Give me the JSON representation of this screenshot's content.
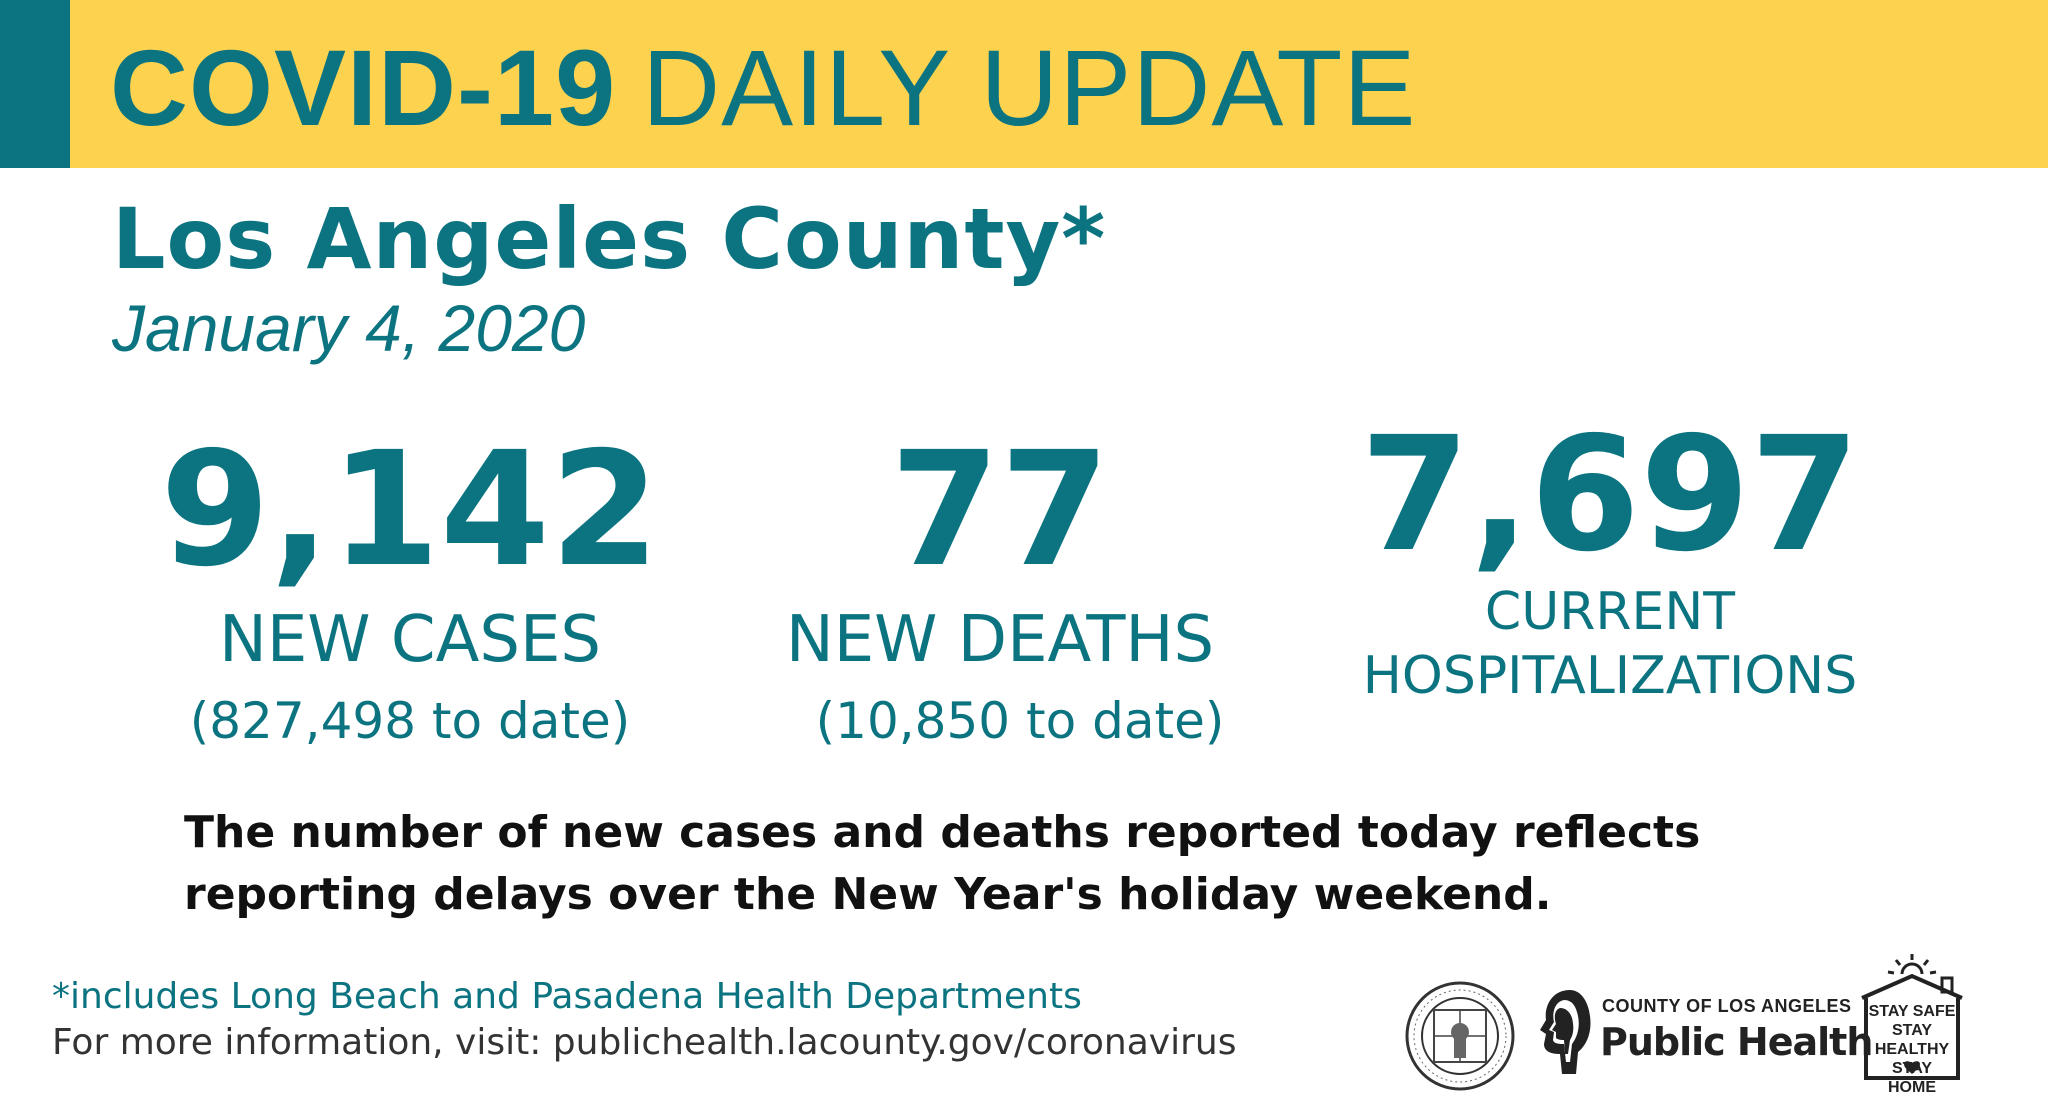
{
  "banner": {
    "title_bold": "COVID-19",
    "title_normal": "DAILY UPDATE",
    "colors": {
      "background": "#fdd24f",
      "accent": "#0b7480"
    }
  },
  "county": "Los Angeles County*",
  "date": "January 4, 2020",
  "stats": {
    "cases": {
      "value": "9,142",
      "label": "NEW CASES",
      "to_date": "(827,498 to date)"
    },
    "deaths": {
      "value": "77",
      "label": "NEW DEATHS",
      "to_date": "(10,850 to date)"
    },
    "hospitalizations": {
      "value": "7,697",
      "label_line1": "CURRENT",
      "label_line2": "HOSPITALIZATIONS"
    }
  },
  "note": "The number of new cases and deaths reported today reflects reporting delays over the New Year's holiday weekend.",
  "footnote": "*includes Long Beach and Pasadena Health Departments",
  "info": "For more information, visit: publichealth.lacounty.gov/coronavirus",
  "logos": {
    "seal": {
      "icon": "county-seal-icon",
      "text_top": "COUNTY OF LOS ANGELES",
      "text_bottom": "CALIFORNIA"
    },
    "public_health": {
      "icon": "public-health-heads-icon",
      "small": "COUNTY OF LOS ANGELES",
      "big": "Public Health"
    },
    "stay": {
      "icon": "house-sun-icon",
      "line1": "STAY SAFE",
      "line2": "STAY HEALTHY",
      "line3": "STAY HOME"
    }
  },
  "theme": {
    "primary": "#0b7480",
    "text_dark": "#111111"
  }
}
